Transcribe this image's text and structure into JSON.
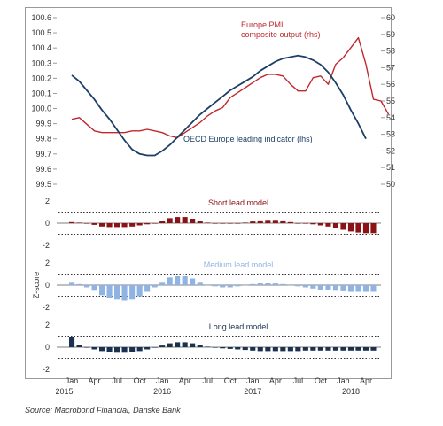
{
  "source": "Source: Macrobond Financial, Danske Bank",
  "colors": {
    "pmi": "#c0282d",
    "oecd": "#1d3f66",
    "short": "#8b1215",
    "medium": "#8fb4e3",
    "long": "#1b3150",
    "threshold": "#333333",
    "axis": "#9a9a9a"
  },
  "chart_data": [
    {
      "type": "line",
      "title": "",
      "x_range": [
        "2014-11",
        "2018-06"
      ],
      "left_axis": {
        "ylim": [
          99.5,
          100.6
        ],
        "ticks": [
          "99.5",
          "99.6",
          "99.7",
          "99.8",
          "99.9",
          "100.0",
          "100.1",
          "100.2",
          "100.3",
          "100.4",
          "100.5",
          "100.6"
        ]
      },
      "right_axis": {
        "ylim": [
          50,
          60
        ],
        "ticks": [
          "50",
          "51",
          "52",
          "53",
          "54",
          "55",
          "56",
          "57",
          "58",
          "59",
          "60"
        ]
      },
      "series": [
        {
          "name": "Europe PMI composite output (rhs)",
          "label_lines": [
            "Europe PMI",
            "composite output (rhs)"
          ],
          "axis": "right",
          "points": [
            [
              "2015-01",
              53.9
            ],
            [
              "2015-02",
              54.0
            ],
            [
              "2015-03",
              53.6
            ],
            [
              "2015-04",
              53.2
            ],
            [
              "2015-05",
              53.1
            ],
            [
              "2015-06",
              53.1
            ],
            [
              "2015-07",
              53.1
            ],
            [
              "2015-08",
              53.1
            ],
            [
              "2015-09",
              53.2
            ],
            [
              "2015-10",
              53.2
            ],
            [
              "2015-11",
              53.3
            ],
            [
              "2015-12",
              53.2
            ],
            [
              "2016-01",
              53.1
            ],
            [
              "2016-02",
              52.9
            ],
            [
              "2016-03",
              52.8
            ],
            [
              "2016-04",
              53.1
            ],
            [
              "2016-05",
              53.4
            ],
            [
              "2016-06",
              53.7
            ],
            [
              "2016-07",
              54.1
            ],
            [
              "2016-08",
              54.4
            ],
            [
              "2016-09",
              54.6
            ],
            [
              "2016-10",
              55.2
            ],
            [
              "2016-11",
              55.5
            ],
            [
              "2016-12",
              55.8
            ],
            [
              "2017-01",
              56.1
            ],
            [
              "2017-02",
              56.4
            ],
            [
              "2017-03",
              56.6
            ],
            [
              "2017-04",
              56.6
            ],
            [
              "2017-05",
              56.5
            ],
            [
              "2017-06",
              56.0
            ],
            [
              "2017-07",
              55.6
            ],
            [
              "2017-08",
              55.6
            ],
            [
              "2017-09",
              56.4
            ],
            [
              "2017-10",
              56.5
            ],
            [
              "2017-11",
              56.0
            ],
            [
              "2017-12",
              57.2
            ],
            [
              "2018-01",
              57.6
            ],
            [
              "2018-02",
              58.2
            ],
            [
              "2018-03",
              58.8
            ],
            [
              "2018-04",
              57.2
            ],
            [
              "2018-05",
              55.1
            ],
            [
              "2018-06",
              55.0
            ],
            [
              "2018-07",
              54.2
            ]
          ]
        },
        {
          "name": "OECD Europe leading indicator (lhs)",
          "label_lines": [
            "OECD Europe leading indicator (lhs)"
          ],
          "axis": "left",
          "points": [
            [
              "2015-01",
              100.22
            ],
            [
              "2015-02",
              100.18
            ],
            [
              "2015-03",
              100.12
            ],
            [
              "2015-04",
              100.06
            ],
            [
              "2015-05",
              99.99
            ],
            [
              "2015-06",
              99.93
            ],
            [
              "2015-07",
              99.86
            ],
            [
              "2015-08",
              99.79
            ],
            [
              "2015-09",
              99.73
            ],
            [
              "2015-10",
              99.7
            ],
            [
              "2015-11",
              99.69
            ],
            [
              "2015-12",
              99.69
            ],
            [
              "2016-01",
              99.72
            ],
            [
              "2016-02",
              99.76
            ],
            [
              "2016-03",
              99.81
            ],
            [
              "2016-04",
              99.86
            ],
            [
              "2016-05",
              99.91
            ],
            [
              "2016-06",
              99.96
            ],
            [
              "2016-07",
              100.0
            ],
            [
              "2016-08",
              100.04
            ],
            [
              "2016-09",
              100.08
            ],
            [
              "2016-10",
              100.12
            ],
            [
              "2016-11",
              100.15
            ],
            [
              "2016-12",
              100.18
            ],
            [
              "2017-01",
              100.21
            ],
            [
              "2017-02",
              100.25
            ],
            [
              "2017-03",
              100.28
            ],
            [
              "2017-04",
              100.31
            ],
            [
              "2017-05",
              100.33
            ],
            [
              "2017-06",
              100.34
            ],
            [
              "2017-07",
              100.35
            ],
            [
              "2017-08",
              100.34
            ],
            [
              "2017-09",
              100.32
            ],
            [
              "2017-10",
              100.29
            ],
            [
              "2017-11",
              100.24
            ],
            [
              "2017-12",
              100.17
            ],
            [
              "2018-01",
              100.09
            ],
            [
              "2018-02",
              99.99
            ],
            [
              "2018-03",
              99.9
            ],
            [
              "2018-04",
              99.8
            ]
          ]
        }
      ]
    },
    {
      "type": "bar",
      "title": "Short lead model",
      "ylim": [
        -2,
        2
      ],
      "ticks": [
        "2",
        "0",
        "-2"
      ],
      "thresholds": [
        1,
        -1
      ],
      "x_range": [
        "2014-11",
        "2018-06"
      ],
      "start": "2015-01",
      "values": [
        0.1,
        0.05,
        0.0,
        -0.15,
        -0.3,
        -0.35,
        -0.35,
        -0.35,
        -0.3,
        -0.2,
        -0.1,
        0.0,
        0.2,
        0.45,
        0.55,
        0.55,
        0.4,
        0.2,
        0.05,
        0.0,
        -0.05,
        -0.05,
        0.0,
        0.05,
        0.15,
        0.25,
        0.3,
        0.3,
        0.25,
        0.1,
        0.0,
        -0.05,
        -0.1,
        -0.2,
        -0.3,
        -0.45,
        -0.6,
        -0.75,
        -0.85,
        -0.9,
        -0.9
      ]
    },
    {
      "type": "bar",
      "title": "Medium lead model",
      "ylim": [
        -2,
        2
      ],
      "ticks": [
        "2",
        "0",
        "-2"
      ],
      "thresholds": [
        1,
        -1
      ],
      "x_range": [
        "2014-11",
        "2018-06"
      ],
      "start": "2015-01",
      "values": [
        0.3,
        0.1,
        -0.2,
        -0.5,
        -0.9,
        -1.2,
        -1.3,
        -1.4,
        -1.3,
        -1.0,
        -0.6,
        -0.2,
        0.3,
        0.7,
        0.8,
        0.8,
        0.6,
        0.3,
        0.0,
        -0.1,
        -0.2,
        -0.2,
        -0.1,
        0.0,
        0.1,
        0.2,
        0.2,
        0.15,
        0.1,
        0.0,
        -0.1,
        -0.2,
        -0.3,
        -0.4,
        -0.45,
        -0.5,
        -0.55,
        -0.6,
        -0.6,
        -0.6,
        -0.6
      ]
    },
    {
      "type": "bar",
      "title": "Long lead model",
      "ylim": [
        -2,
        2
      ],
      "ticks": [
        "2",
        "0",
        "-2"
      ],
      "thresholds": [
        1,
        -1
      ],
      "x_range": [
        "2014-11",
        "2018-06"
      ],
      "start": "2015-01",
      "values": [
        0.9,
        0.2,
        -0.05,
        -0.2,
        -0.35,
        -0.45,
        -0.5,
        -0.5,
        -0.45,
        -0.35,
        -0.2,
        -0.05,
        0.15,
        0.35,
        0.45,
        0.45,
        0.35,
        0.2,
        0.05,
        -0.05,
        -0.1,
        -0.15,
        -0.2,
        -0.25,
        -0.3,
        -0.35,
        -0.35,
        -0.35,
        -0.35,
        -0.35,
        -0.35,
        -0.3,
        -0.3,
        -0.3,
        -0.3,
        -0.3,
        -0.3,
        -0.3,
        -0.3,
        -0.3,
        -0.3
      ]
    }
  ],
  "y_axis_label": "Z-score",
  "x_axis": {
    "months": [
      "Jan",
      "Apr",
      "Jul",
      "Oct",
      "Jan",
      "Apr",
      "Jul",
      "Oct",
      "Jan",
      "Apr",
      "Jul",
      "Oct",
      "Jan",
      "Apr"
    ],
    "month_positions": [
      "2015-01",
      "2015-04",
      "2015-07",
      "2015-10",
      "2016-01",
      "2016-04",
      "2016-07",
      "2016-10",
      "2017-01",
      "2017-04",
      "2017-07",
      "2017-10",
      "2018-01",
      "2018-04"
    ],
    "years": [
      "2015",
      "2016",
      "2017",
      "2018"
    ],
    "year_positions": [
      "2014-12",
      "2016-01",
      "2017-01",
      "2018-02"
    ]
  }
}
